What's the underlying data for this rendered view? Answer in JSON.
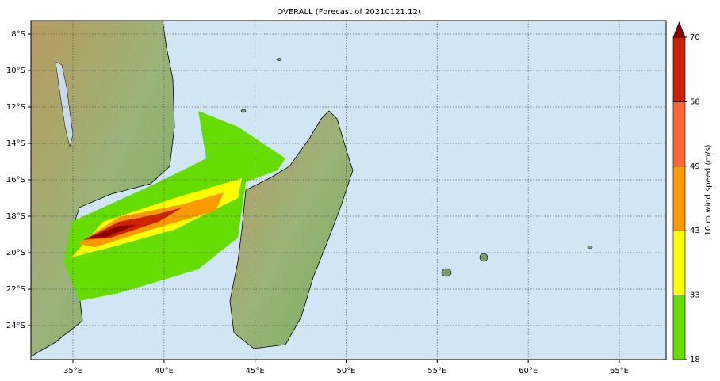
{
  "title": "OVERALL (Forecast of 20210121.12)",
  "map": {
    "xlim": [
      32.69,
      67.57
    ],
    "ylim": [
      -25.87,
      -7.26
    ],
    "grid": true,
    "xticks": [
      {
        "value": 35,
        "label": "35°E"
      },
      {
        "value": 40,
        "label": "40°E"
      },
      {
        "value": 45,
        "label": "45°E"
      },
      {
        "value": 50,
        "label": "50°E"
      },
      {
        "value": 55,
        "label": "55°E"
      },
      {
        "value": 60,
        "label": "60°E"
      },
      {
        "value": 65,
        "label": "65°E"
      }
    ],
    "yticks": [
      {
        "value": -8,
        "label": "8°S"
      },
      {
        "value": -10,
        "label": "10°S"
      },
      {
        "value": -12,
        "label": "12°S"
      },
      {
        "value": -14,
        "label": "14°S"
      },
      {
        "value": -16,
        "label": "16°S"
      },
      {
        "value": -18,
        "label": "18°S"
      },
      {
        "value": -20,
        "label": "20°S"
      },
      {
        "value": -22,
        "label": "22°S"
      },
      {
        "value": -24,
        "label": "24°S"
      }
    ]
  },
  "colorbar": {
    "label": "10 m wind speed (m/s)",
    "ticks": [
      18,
      33,
      43,
      49,
      58,
      70
    ],
    "colors": [
      "#66dd00",
      "#ffff00",
      "#ff9900",
      "#ff6633",
      "#cc2200"
    ],
    "extend_color": "#8b0000"
  }
}
